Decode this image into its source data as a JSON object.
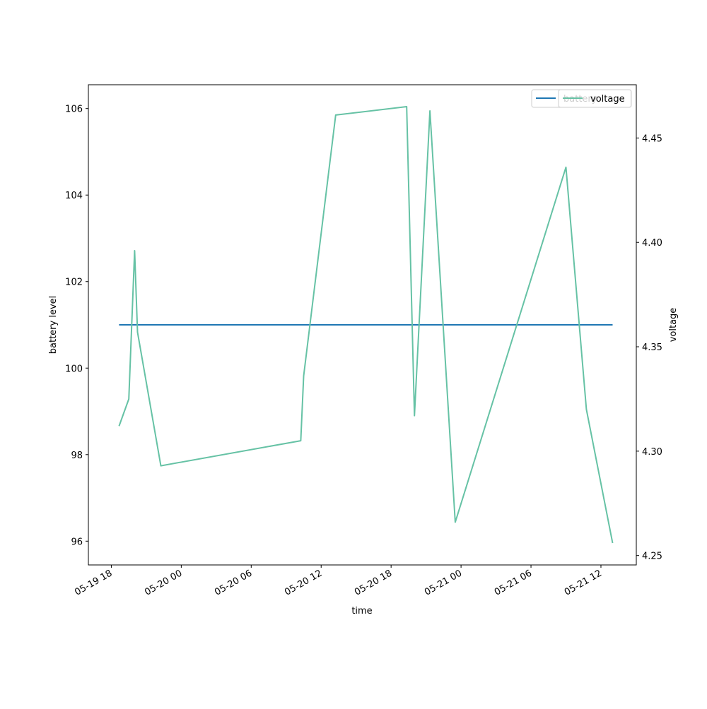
{
  "chart_data": {
    "type": "line",
    "xlabel": "time",
    "ylabel_left": "battery level",
    "ylabel_right": "voltage",
    "x_ticks": [
      "05-19 18",
      "05-20 00",
      "05-20 06",
      "05-20 12",
      "05-20 18",
      "05-21 00",
      "05-21 06",
      "05-21 12"
    ],
    "y_left_ticks": [
      "96",
      "98",
      "100",
      "102",
      "104",
      "106"
    ],
    "y_right_ticks": [
      "4.25",
      "4.30",
      "4.35",
      "4.40",
      "4.45"
    ],
    "xlim_hours": [
      "05-19 16:02",
      "05-21 15:02"
    ],
    "ylim_left": [
      95.45,
      106.55
    ],
    "ylim_right": [
      4.2455,
      4.4755
    ],
    "grid": false,
    "legend_left": {
      "entries": [
        "battery"
      ],
      "placement": "top-right"
    },
    "legend_right": {
      "entries": [
        "voltage"
      ],
      "placement": "top-right"
    },
    "colors": {
      "battery": "#1f77b4",
      "voltage": "#66c2a5"
    },
    "series": [
      {
        "name": "battery",
        "axis": "left",
        "x": [
          "05-19 18:40",
          "05-21 13:00"
        ],
        "y": [
          101,
          101
        ]
      },
      {
        "name": "voltage",
        "axis": "right",
        "x": [
          "05-19 18:40",
          "05-19 19:30",
          "05-19 20:00",
          "05-19 20:15",
          "05-19 22:15",
          "05-20 10:15",
          "05-20 10:30",
          "05-20 13:15",
          "05-20 19:20",
          "05-20 20:00",
          "05-20 21:20",
          "05-20 23:30",
          "05-21 09:00",
          "05-21 10:45",
          "05-21 13:00"
        ],
        "y": [
          4.312,
          4.325,
          4.396,
          4.357,
          4.293,
          4.305,
          4.336,
          4.461,
          4.465,
          4.317,
          4.463,
          4.266,
          4.436,
          4.32,
          4.256
        ]
      }
    ]
  }
}
